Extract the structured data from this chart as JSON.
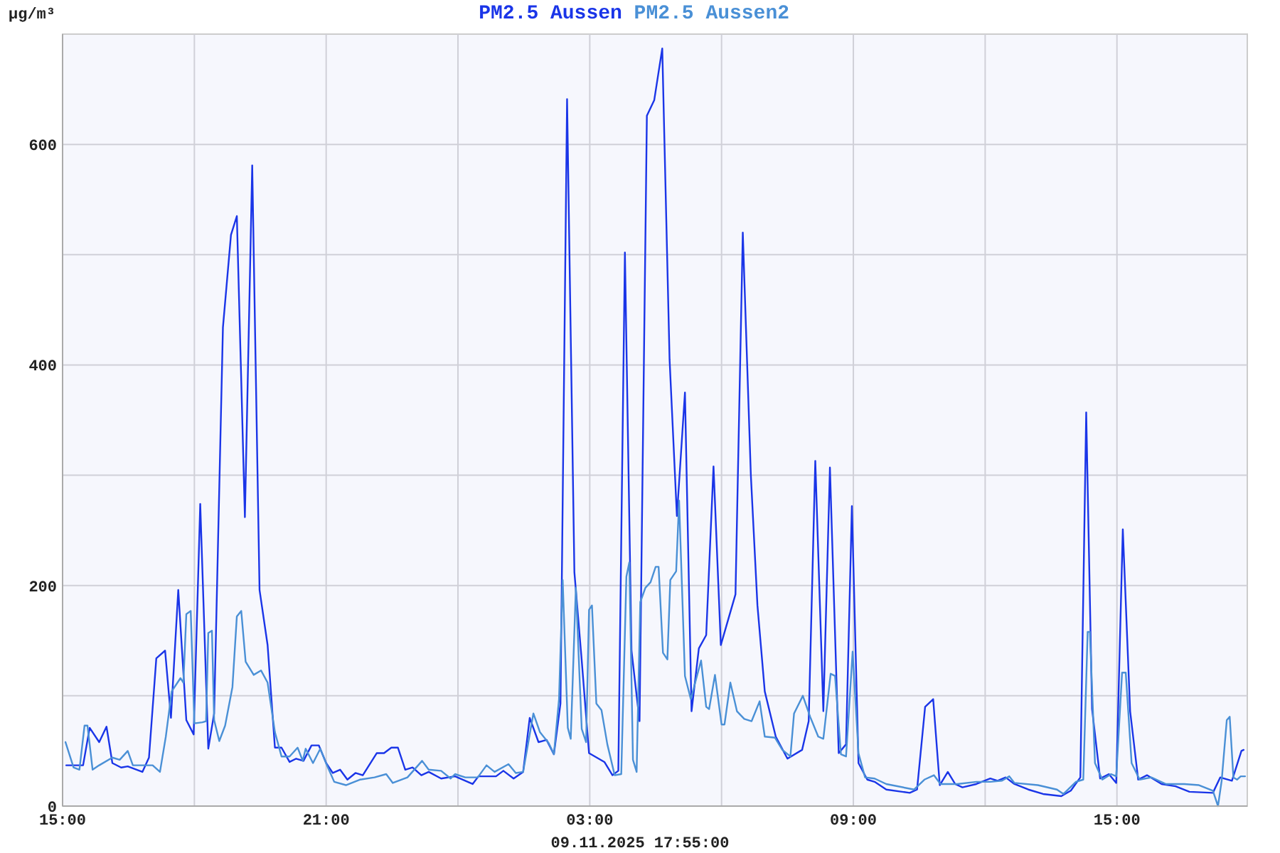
{
  "chart_data": {
    "type": "line",
    "ylabel": "µg/m³",
    "annotations": [
      "09.11.2025 17:55:00"
    ],
    "legend": "top",
    "grid": true,
    "marker": "none",
    "line_style": "solid",
    "xlim": [
      "2025-11-08T15:00",
      "2025-11-09T17:58"
    ],
    "xticks": [
      {
        "value": "2025-11-08T15:00",
        "label": "15:00"
      },
      {
        "value": "2025-11-08T18:00",
        "label": null
      },
      {
        "value": "2025-11-08T21:00",
        "label": "21:00"
      },
      {
        "value": "2025-11-09T00:00",
        "label": null
      },
      {
        "value": "2025-11-09T03:00",
        "label": "03:00"
      },
      {
        "value": "2025-11-09T06:00",
        "label": null
      },
      {
        "value": "2025-11-09T09:00",
        "label": "09:00"
      },
      {
        "value": "2025-11-09T12:00",
        "label": null
      },
      {
        "value": "2025-11-09T15:00",
        "label": "15:00"
      }
    ],
    "ylim": [
      0,
      700
    ],
    "yticks": [
      0,
      {
        "value": 100,
        "label": null
      },
      200,
      {
        "value": 300,
        "label": null
      },
      400,
      {
        "value": 500,
        "label": null
      },
      600
    ],
    "series": [
      {
        "name": "PM2.5 Aussen",
        "color": "#1a35e8",
        "x": [
          "2025-11-08T15:05",
          "2025-11-08T15:28",
          "2025-11-08T15:37",
          "2025-11-08T15:50",
          "2025-11-08T16:00",
          "2025-11-08T16:08",
          "2025-11-08T16:20",
          "2025-11-08T16:29",
          "2025-11-08T16:49",
          "2025-11-08T16:58",
          "2025-11-08T17:08",
          "2025-11-08T17:20",
          "2025-11-08T17:28",
          "2025-11-08T17:38",
          "2025-11-08T17:49",
          "2025-11-08T17:59",
          "2025-11-08T18:08",
          "2025-11-08T18:19",
          "2025-11-08T18:27",
          "2025-11-08T18:39",
          "2025-11-08T18:50",
          "2025-11-08T18:58",
          "2025-11-08T19:09",
          "2025-11-08T19:19",
          "2025-11-08T19:29",
          "2025-11-08T19:40",
          "2025-11-08T19:50",
          "2025-11-08T19:59",
          "2025-11-08T20:10",
          "2025-11-08T20:19",
          "2025-11-08T20:29",
          "2025-11-08T20:40",
          "2025-11-08T20:50",
          "2025-11-08T21:00",
          "2025-11-08T21:09",
          "2025-11-08T21:19",
          "2025-11-08T21:29",
          "2025-11-08T21:40",
          "2025-11-08T21:50",
          "2025-11-08T22:09",
          "2025-11-08T22:19",
          "2025-11-08T22:29",
          "2025-11-08T22:38",
          "2025-11-08T22:48",
          "2025-11-08T22:58",
          "2025-11-08T23:10",
          "2025-11-08T23:20",
          "2025-11-08T23:37",
          "2025-11-08T23:56",
          "2025-11-09T00:20",
          "2025-11-09T00:28",
          "2025-11-09T00:52",
          "2025-11-09T01:02",
          "2025-11-09T01:16",
          "2025-11-09T01:29",
          "2025-11-09T01:38",
          "2025-11-09T01:50",
          "2025-11-09T02:01",
          "2025-11-09T02:11",
          "2025-11-09T02:20",
          "2025-11-09T02:29",
          "2025-11-09T02:39",
          "2025-11-09T02:49",
          "2025-11-09T02:59",
          "2025-11-09T03:20",
          "2025-11-09T03:31",
          "2025-11-09T03:39",
          "2025-11-09T03:48",
          "2025-11-09T03:57",
          "2025-11-09T04:08",
          "2025-11-09T04:18",
          "2025-11-09T04:28",
          "2025-11-09T04:39",
          "2025-11-09T04:49",
          "2025-11-09T04:59",
          "2025-11-09T05:10",
          "2025-11-09T05:19",
          "2025-11-09T05:29",
          "2025-11-09T05:39",
          "2025-11-09T05:49",
          "2025-11-09T05:59",
          "2025-11-09T06:19",
          "2025-11-09T06:29",
          "2025-11-09T06:40",
          "2025-11-09T06:49",
          "2025-11-09T06:59",
          "2025-11-09T07:14",
          "2025-11-09T07:30",
          "2025-11-09T07:50",
          "2025-11-09T07:59",
          "2025-11-09T08:08",
          "2025-11-09T08:19",
          "2025-11-09T08:28",
          "2025-11-09T08:40",
          "2025-11-09T08:50",
          "2025-11-09T08:58",
          "2025-11-09T09:07",
          "2025-11-09T09:19",
          "2025-11-09T09:29",
          "2025-11-09T09:45",
          "2025-11-09T10:17",
          "2025-11-09T10:27",
          "2025-11-09T10:38",
          "2025-11-09T10:49",
          "2025-11-09T10:58",
          "2025-11-09T11:09",
          "2025-11-09T11:19",
          "2025-11-09T11:29",
          "2025-11-09T11:48",
          "2025-11-09T12:07",
          "2025-11-09T12:17",
          "2025-11-09T12:28",
          "2025-11-09T12:40",
          "2025-11-09T12:59",
          "2025-11-09T13:19",
          "2025-11-09T13:44",
          "2025-11-09T13:57",
          "2025-11-09T14:10",
          "2025-11-09T14:18",
          "2025-11-09T14:26",
          "2025-11-09T14:37",
          "2025-11-09T14:49",
          "2025-11-09T14:59",
          "2025-11-09T15:08",
          "2025-11-09T15:18",
          "2025-11-09T15:29",
          "2025-11-09T15:41",
          "2025-11-09T16:01",
          "2025-11-09T16:20",
          "2025-11-09T16:39",
          "2025-11-09T17:11",
          "2025-11-09T17:21",
          "2025-11-09T17:37",
          "2025-11-09T17:50",
          "2025-11-09T17:53"
        ],
        "values": [
          37,
          37,
          71,
          58,
          72,
          39,
          35,
          36,
          31,
          44,
          134,
          141,
          80,
          196,
          78,
          65,
          274,
          52,
          84,
          434,
          518,
          535,
          262,
          581,
          196,
          146,
          53,
          53,
          40,
          43,
          41,
          55,
          55,
          39,
          30,
          33,
          24,
          30,
          28,
          48,
          48,
          53,
          53,
          33,
          35,
          28,
          31,
          25,
          27,
          20,
          27,
          27,
          32,
          25,
          31,
          80,
          58,
          60,
          47,
          93,
          641,
          212,
          132,
          48,
          40,
          28,
          32,
          502,
          141,
          77,
          626,
          640,
          687,
          405,
          263,
          375,
          86,
          143,
          155,
          308,
          146,
          192,
          520,
          300,
          182,
          104,
          63,
          43,
          51,
          77,
          313,
          86,
          307,
          48,
          56,
          272,
          39,
          24,
          22,
          15,
          12,
          15,
          90,
          97,
          19,
          31,
          20,
          17,
          20,
          25,
          23,
          26,
          20,
          15,
          11,
          9,
          14,
          26,
          357,
          88,
          25,
          29,
          21,
          251,
          86,
          24,
          28,
          20,
          18,
          13,
          12,
          26,
          23,
          50,
          51
        ]
      },
      {
        "name": "PM2.5 Aussen2",
        "color": "#4a90d6",
        "x": [
          "2025-11-08T15:04",
          "2025-11-08T15:15",
          "2025-11-08T15:23",
          "2025-11-08T15:30",
          "2025-11-08T15:34",
          "2025-11-08T15:41",
          "2025-11-08T15:50",
          "2025-11-08T16:08",
          "2025-11-08T16:18",
          "2025-11-08T16:29",
          "2025-11-08T16:36",
          "2025-11-08T17:03",
          "2025-11-08T17:13",
          "2025-11-08T17:21",
          "2025-11-08T17:29",
          "2025-11-08T17:41",
          "2025-11-08T17:45",
          "2025-11-08T17:49",
          "2025-11-08T17:55",
          "2025-11-08T18:00",
          "2025-11-08T18:11",
          "2025-11-08T18:16",
          "2025-11-08T18:19",
          "2025-11-08T18:24",
          "2025-11-08T18:27",
          "2025-11-08T18:34",
          "2025-11-08T18:42",
          "2025-11-08T18:52",
          "2025-11-08T18:58",
          "2025-11-08T19:04",
          "2025-11-08T19:10",
          "2025-11-08T19:21",
          "2025-11-08T19:31",
          "2025-11-08T19:40",
          "2025-11-08T19:50",
          "2025-11-08T19:59",
          "2025-11-08T20:10",
          "2025-11-08T20:21",
          "2025-11-08T20:28",
          "2025-11-08T20:32",
          "2025-11-08T20:42",
          "2025-11-08T20:52",
          "2025-11-08T21:01",
          "2025-11-08T21:11",
          "2025-11-08T21:27",
          "2025-11-08T21:46",
          "2025-11-08T22:06",
          "2025-11-08T22:22",
          "2025-11-08T22:31",
          "2025-11-08T22:51",
          "2025-11-08T23:11",
          "2025-11-08T23:20",
          "2025-11-08T23:37",
          "2025-11-08T23:50",
          "2025-11-08T23:56",
          "2025-11-09T00:10",
          "2025-11-09T00:27",
          "2025-11-09T00:39",
          "2025-11-09T00:50",
          "2025-11-09T01:09",
          "2025-11-09T01:19",
          "2025-11-09T01:29",
          "2025-11-09T01:43",
          "2025-11-09T01:52",
          "2025-11-09T02:04",
          "2025-11-09T02:11",
          "2025-11-09T02:18",
          "2025-11-09T02:23",
          "2025-11-09T02:30",
          "2025-11-09T02:34",
          "2025-11-09T02:41",
          "2025-11-09T02:49",
          "2025-11-09T02:55",
          "2025-11-09T02:59",
          "2025-11-09T03:03",
          "2025-11-09T03:09",
          "2025-11-09T03:16",
          "2025-11-09T03:24",
          "2025-11-09T03:34",
          "2025-11-09T03:43",
          "2025-11-09T03:50",
          "2025-11-09T03:54",
          "2025-11-09T03:59",
          "2025-11-09T04:04",
          "2025-11-09T04:09",
          "2025-11-09T04:16",
          "2025-11-09T04:23",
          "2025-11-09T04:30",
          "2025-11-09T04:34",
          "2025-11-09T04:40",
          "2025-11-09T04:46",
          "2025-11-09T04:50",
          "2025-11-09T04:58",
          "2025-11-09T05:02",
          "2025-11-09T05:10",
          "2025-11-09T05:18",
          "2025-11-09T05:32",
          "2025-11-09T05:39",
          "2025-11-09T05:43",
          "2025-11-09T05:51",
          "2025-11-09T06:00",
          "2025-11-09T06:04",
          "2025-11-09T06:12",
          "2025-11-09T06:21",
          "2025-11-09T06:31",
          "2025-11-09T06:41",
          "2025-11-09T06:52",
          "2025-11-09T06:59",
          "2025-11-09T07:13",
          "2025-11-09T07:23",
          "2025-11-09T07:34",
          "2025-11-09T07:39",
          "2025-11-09T07:51",
          "2025-11-09T08:01",
          "2025-11-09T08:12",
          "2025-11-09T08:19",
          "2025-11-09T08:29",
          "2025-11-09T08:35",
          "2025-11-09T08:43",
          "2025-11-09T08:50",
          "2025-11-09T08:59",
          "2025-11-09T09:07",
          "2025-11-09T09:16",
          "2025-11-09T09:29",
          "2025-11-09T09:45",
          "2025-11-09T10:23",
          "2025-11-09T10:37",
          "2025-11-09T10:50",
          "2025-11-09T10:59",
          "2025-11-09T11:22",
          "2025-11-09T11:48",
          "2025-11-09T12:07",
          "2025-11-09T12:23",
          "2025-11-09T12:33",
          "2025-11-09T12:40",
          "2025-11-09T13:12",
          "2025-11-09T13:38",
          "2025-11-09T13:47",
          "2025-11-09T14:04",
          "2025-11-09T14:14",
          "2025-11-09T14:20",
          "2025-11-09T14:23",
          "2025-11-09T14:30",
          "2025-11-09T14:40",
          "2025-11-09T14:52",
          "2025-11-09T14:59",
          "2025-11-09T15:07",
          "2025-11-09T15:12",
          "2025-11-09T15:20",
          "2025-11-09T15:31",
          "2025-11-09T15:47",
          "2025-11-09T16:07",
          "2025-11-09T16:32",
          "2025-11-09T16:52",
          "2025-11-09T17:11",
          "2025-11-09T17:18",
          "2025-11-09T17:23",
          "2025-11-09T17:30",
          "2025-11-09T17:34",
          "2025-11-09T17:39",
          "2025-11-09T17:44",
          "2025-11-09T17:49",
          "2025-11-09T17:55"
        ],
        "values": [
          58,
          35,
          33,
          73,
          73,
          33,
          37,
          44,
          42,
          50,
          37,
          37,
          31,
          63,
          104,
          116,
          112,
          174,
          177,
          75,
          76,
          77,
          157,
          159,
          78,
          59,
          73,
          108,
          172,
          177,
          131,
          119,
          123,
          112,
          67,
          45,
          45,
          53,
          41,
          52,
          39,
          52,
          37,
          22,
          19,
          24,
          26,
          29,
          21,
          26,
          41,
          33,
          32,
          25,
          29,
          26,
          26,
          37,
          31,
          38,
          30,
          31,
          84,
          67,
          57,
          47,
          97,
          205,
          71,
          61,
          198,
          70,
          58,
          178,
          182,
          93,
          87,
          56,
          28,
          29,
          208,
          221,
          42,
          31,
          185,
          198,
          203,
          217,
          217,
          139,
          133,
          205,
          213,
          277,
          118,
          97,
          132,
          90,
          88,
          119,
          74,
          74,
          112,
          86,
          79,
          77,
          95,
          63,
          62,
          51,
          45,
          84,
          100,
          81,
          63,
          61,
          120,
          118,
          47,
          45,
          140,
          48,
          26,
          25,
          20,
          15,
          24,
          28,
          20,
          20,
          22,
          22,
          23,
          27,
          21,
          19,
          15,
          11,
          22,
          24,
          158,
          158,
          39,
          24,
          29,
          27,
          121,
          121,
          39,
          24,
          26,
          20,
          20,
          19,
          14,
          0,
          23,
          78,
          81,
          26,
          24,
          27,
          27
        ]
      }
    ]
  }
}
